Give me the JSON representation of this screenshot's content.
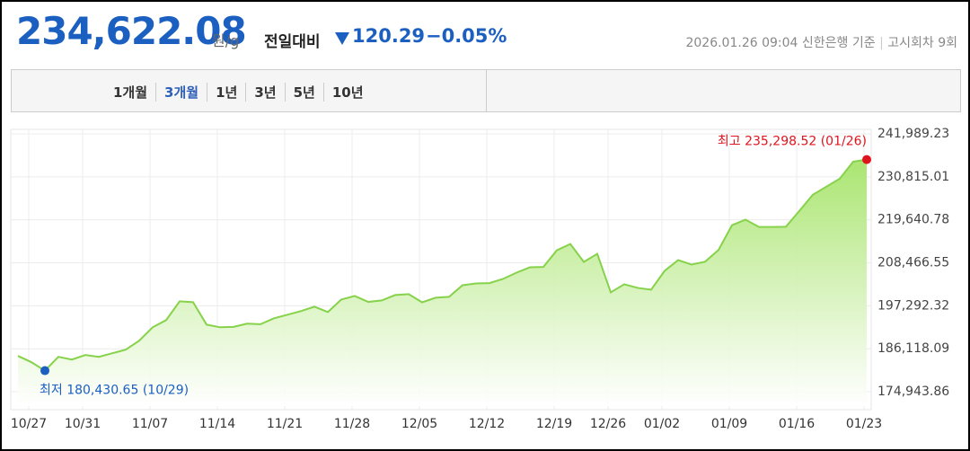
{
  "header": {
    "price": "234,622.08",
    "unit": "원/g",
    "change_label": "전일대비",
    "change": "120.29",
    "change_pct": "−0.05%",
    "timestamp": "2026.01.26 09:04 신한은행 기준",
    "round": "고시회차 9회"
  },
  "tabs": {
    "items": [
      "1개월",
      "3개월",
      "1년",
      "3년",
      "5년",
      "10년"
    ],
    "selected": 1
  },
  "chart_data": {
    "type": "area",
    "categories": [
      "10/27",
      null,
      null,
      null,
      "10/31",
      null,
      null,
      null,
      null,
      "11/07",
      null,
      null,
      null,
      null,
      "11/14",
      null,
      null,
      null,
      null,
      "11/21",
      null,
      null,
      null,
      null,
      "11/28",
      null,
      null,
      null,
      null,
      "12/05",
      null,
      null,
      null,
      null,
      "12/12",
      null,
      null,
      null,
      null,
      "12/19",
      null,
      null,
      null,
      "12/26",
      null,
      null,
      null,
      "01/02",
      null,
      null,
      null,
      null,
      "01/09",
      null,
      null,
      null,
      null,
      "01/16",
      null,
      null,
      null,
      null,
      "01/23",
      null
    ],
    "values": [
      184255,
      182625,
      180430.65,
      184022,
      183323,
      184487,
      184022,
      184953,
      185884,
      188212,
      191704,
      193567,
      198455,
      198223,
      192403,
      191704,
      191800,
      192635,
      192500,
      194032,
      194963,
      195895,
      197059,
      195662,
      198921,
      199852,
      198300,
      198688,
      200085,
      200318,
      198200,
      199387,
      199619,
      202646,
      203111,
      203200,
      204275,
      205905,
      207302,
      207400,
      211725,
      213355,
      208699,
      210794,
      200783,
      202879,
      201947,
      201482,
      206371,
      209164,
      208000,
      208750,
      211800,
      218243,
      219700,
      217778,
      217800,
      217850,
      221968,
      226159,
      228254,
      230349,
      234772,
      235298.52
    ],
    "ylim": [
      171219,
      241989.23
    ],
    "yticks": [
      {
        "value": 174943.86,
        "label": "174,943.86"
      },
      {
        "value": 186118.09,
        "label": "186,118.09"
      },
      {
        "value": 197292.32,
        "label": "197,292.32"
      },
      {
        "value": 208466.55,
        "label": "208,466.55"
      },
      {
        "value": 219640.78,
        "label": "219,640.78"
      },
      {
        "value": 230815.01,
        "label": "230,815.01"
      },
      {
        "value": 241989.23,
        "label": "241,989.23"
      }
    ],
    "grid": true,
    "color": "#86d24a",
    "max_label": "최고 235,298.52 (01/26)",
    "min_label": "최저 180,430.65 (10/29)"
  }
}
